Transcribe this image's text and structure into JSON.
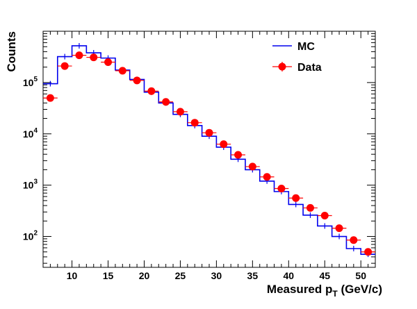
{
  "chart_data": {
    "type": "line",
    "xlabel": "Measured p_T (GeV/c)",
    "xlabel_main": "Measured p",
    "xlabel_sub": "T",
    "xlabel_unit": "(GeV/c)",
    "ylabel": "Counts",
    "xlim": [
      6,
      52
    ],
    "ylim": [
      25,
      1000000
    ],
    "yscale": "log",
    "x_ticks": [
      10,
      15,
      20,
      25,
      30,
      35,
      40,
      45,
      50
    ],
    "y_ticks": [
      {
        "value": 100,
        "base": "10",
        "exp": "2"
      },
      {
        "value": 1000,
        "base": "10",
        "exp": "3"
      },
      {
        "value": 10000,
        "base": "10",
        "exp": "4"
      },
      {
        "value": 100000,
        "base": "10",
        "exp": "5"
      }
    ],
    "grid": false,
    "legend_position": "top-right",
    "series": [
      {
        "name": "MC",
        "style": "histogram",
        "color": "#0000ee",
        "bin_edges": [
          6,
          8,
          10,
          12,
          14,
          16,
          18,
          20,
          22,
          24,
          26,
          28,
          30,
          32,
          34,
          36,
          38,
          40,
          42,
          44,
          46,
          48,
          50,
          52
        ],
        "values": [
          95000,
          320000,
          520000,
          380000,
          300000,
          175000,
          115000,
          65000,
          40000,
          24000,
          14500,
          9000,
          5500,
          3200,
          2000,
          1200,
          750,
          420,
          260,
          160,
          100,
          58,
          45
        ]
      },
      {
        "name": "Data",
        "style": "markers",
        "color": "#ff0000",
        "x": [
          7,
          9,
          11,
          13,
          15,
          17,
          19,
          21,
          23,
          25,
          27,
          29,
          31,
          33,
          35,
          37,
          39,
          41,
          43,
          45,
          47,
          49,
          51
        ],
        "values": [
          50000,
          210000,
          340000,
          310000,
          250000,
          170000,
          110000,
          68000,
          42000,
          27000,
          16500,
          10500,
          6300,
          3900,
          2300,
          1450,
          860,
          560,
          360,
          255,
          145,
          85,
          50
        ]
      }
    ]
  }
}
